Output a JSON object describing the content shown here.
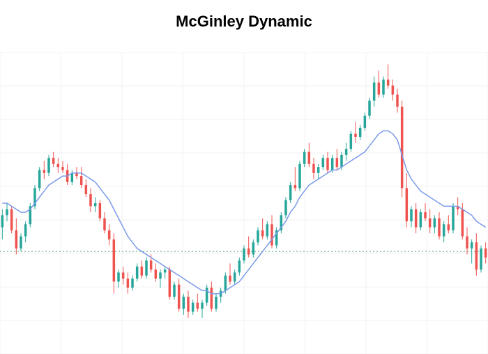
{
  "title": "McGinley Dynamic",
  "title_fontsize": 22,
  "title_color": "#000000",
  "chart": {
    "type": "candlestick",
    "background_color": "#ffffff",
    "grid_color": "#f0f0f0",
    "grid_lines_h": 9,
    "grid_lines_v": 8,
    "reference_line_y": 34,
    "reference_line_color": "#4aa86f",
    "reference_line_dash": "2,3",
    "up_color": "#26a69a",
    "down_color": "#ef5350",
    "wick_width": 1,
    "body_width": 3.5,
    "indicator_color": "#7a9ae8",
    "indicator_width": 1.5,
    "ylim": [
      0,
      100
    ],
    "candles": [
      {
        "o": 42,
        "h": 48,
        "l": 38,
        "c": 46
      },
      {
        "o": 46,
        "h": 50,
        "l": 44,
        "c": 48
      },
      {
        "o": 48,
        "h": 49,
        "l": 40,
        "c": 41
      },
      {
        "o": 41,
        "h": 45,
        "l": 33,
        "c": 35
      },
      {
        "o": 35,
        "h": 40,
        "l": 34,
        "c": 39
      },
      {
        "o": 39,
        "h": 44,
        "l": 37,
        "c": 43
      },
      {
        "o": 43,
        "h": 50,
        "l": 42,
        "c": 49
      },
      {
        "o": 49,
        "h": 56,
        "l": 48,
        "c": 55
      },
      {
        "o": 55,
        "h": 62,
        "l": 54,
        "c": 61
      },
      {
        "o": 61,
        "h": 64,
        "l": 58,
        "c": 60
      },
      {
        "o": 60,
        "h": 66,
        "l": 59,
        "c": 65
      },
      {
        "o": 65,
        "h": 67,
        "l": 62,
        "c": 63
      },
      {
        "o": 63,
        "h": 65,
        "l": 60,
        "c": 62
      },
      {
        "o": 62,
        "h": 64,
        "l": 60,
        "c": 61
      },
      {
        "o": 61,
        "h": 63,
        "l": 56,
        "c": 57
      },
      {
        "o": 57,
        "h": 61,
        "l": 56,
        "c": 60
      },
      {
        "o": 60,
        "h": 62,
        "l": 58,
        "c": 59
      },
      {
        "o": 59,
        "h": 62,
        "l": 55,
        "c": 56
      },
      {
        "o": 56,
        "h": 58,
        "l": 52,
        "c": 53
      },
      {
        "o": 53,
        "h": 55,
        "l": 47,
        "c": 49
      },
      {
        "o": 49,
        "h": 52,
        "l": 47,
        "c": 50
      },
      {
        "o": 50,
        "h": 51,
        "l": 44,
        "c": 45
      },
      {
        "o": 45,
        "h": 47,
        "l": 40,
        "c": 41
      },
      {
        "o": 41,
        "h": 43,
        "l": 36,
        "c": 38
      },
      {
        "o": 38,
        "h": 40,
        "l": 20,
        "c": 24
      },
      {
        "o": 24,
        "h": 28,
        "l": 22,
        "c": 27
      },
      {
        "o": 27,
        "h": 29,
        "l": 23,
        "c": 25
      },
      {
        "o": 25,
        "h": 27,
        "l": 20,
        "c": 22
      },
      {
        "o": 22,
        "h": 26,
        "l": 21,
        "c": 25
      },
      {
        "o": 25,
        "h": 30,
        "l": 24,
        "c": 29
      },
      {
        "o": 29,
        "h": 31,
        "l": 25,
        "c": 26
      },
      {
        "o": 26,
        "h": 32,
        "l": 25,
        "c": 31
      },
      {
        "o": 31,
        "h": 33,
        "l": 27,
        "c": 28
      },
      {
        "o": 28,
        "h": 30,
        "l": 24,
        "c": 25
      },
      {
        "o": 25,
        "h": 28,
        "l": 22,
        "c": 27
      },
      {
        "o": 27,
        "h": 29,
        "l": 25,
        "c": 28
      },
      {
        "o": 28,
        "h": 29,
        "l": 18,
        "c": 19
      },
      {
        "o": 19,
        "h": 24,
        "l": 18,
        "c": 23
      },
      {
        "o": 23,
        "h": 25,
        "l": 14,
        "c": 15
      },
      {
        "o": 15,
        "h": 20,
        "l": 13,
        "c": 19
      },
      {
        "o": 19,
        "h": 21,
        "l": 12,
        "c": 14
      },
      {
        "o": 14,
        "h": 18,
        "l": 13,
        "c": 17
      },
      {
        "o": 17,
        "h": 20,
        "l": 14,
        "c": 15
      },
      {
        "o": 15,
        "h": 18,
        "l": 12,
        "c": 17
      },
      {
        "o": 17,
        "h": 23,
        "l": 16,
        "c": 22
      },
      {
        "o": 22,
        "h": 24,
        "l": 14,
        "c": 15
      },
      {
        "o": 15,
        "h": 20,
        "l": 14,
        "c": 19
      },
      {
        "o": 19,
        "h": 22,
        "l": 17,
        "c": 21
      },
      {
        "o": 21,
        "h": 27,
        "l": 20,
        "c": 26
      },
      {
        "o": 26,
        "h": 30,
        "l": 23,
        "c": 24
      },
      {
        "o": 24,
        "h": 28,
        "l": 23,
        "c": 27
      },
      {
        "o": 27,
        "h": 32,
        "l": 26,
        "c": 31
      },
      {
        "o": 31,
        "h": 36,
        "l": 30,
        "c": 35
      },
      {
        "o": 35,
        "h": 39,
        "l": 32,
        "c": 33
      },
      {
        "o": 33,
        "h": 38,
        "l": 32,
        "c": 37
      },
      {
        "o": 37,
        "h": 42,
        "l": 36,
        "c": 41
      },
      {
        "o": 41,
        "h": 45,
        "l": 38,
        "c": 39
      },
      {
        "o": 39,
        "h": 44,
        "l": 38,
        "c": 43
      },
      {
        "o": 43,
        "h": 46,
        "l": 35,
        "c": 36
      },
      {
        "o": 36,
        "h": 42,
        "l": 35,
        "c": 41
      },
      {
        "o": 41,
        "h": 47,
        "l": 40,
        "c": 46
      },
      {
        "o": 46,
        "h": 52,
        "l": 45,
        "c": 51
      },
      {
        "o": 51,
        "h": 57,
        "l": 50,
        "c": 56
      },
      {
        "o": 56,
        "h": 62,
        "l": 54,
        "c": 55
      },
      {
        "o": 55,
        "h": 64,
        "l": 54,
        "c": 63
      },
      {
        "o": 63,
        "h": 68,
        "l": 62,
        "c": 67
      },
      {
        "o": 67,
        "h": 70,
        "l": 62,
        "c": 63
      },
      {
        "o": 63,
        "h": 65,
        "l": 58,
        "c": 60
      },
      {
        "o": 60,
        "h": 63,
        "l": 58,
        "c": 62
      },
      {
        "o": 62,
        "h": 66,
        "l": 61,
        "c": 65
      },
      {
        "o": 65,
        "h": 67,
        "l": 60,
        "c": 61
      },
      {
        "o": 61,
        "h": 66,
        "l": 60,
        "c": 65
      },
      {
        "o": 65,
        "h": 68,
        "l": 61,
        "c": 62
      },
      {
        "o": 62,
        "h": 67,
        "l": 61,
        "c": 66
      },
      {
        "o": 66,
        "h": 70,
        "l": 64,
        "c": 68
      },
      {
        "o": 68,
        "h": 74,
        "l": 67,
        "c": 73
      },
      {
        "o": 73,
        "h": 77,
        "l": 70,
        "c": 72
      },
      {
        "o": 72,
        "h": 76,
        "l": 71,
        "c": 75
      },
      {
        "o": 75,
        "h": 80,
        "l": 74,
        "c": 79
      },
      {
        "o": 79,
        "h": 85,
        "l": 78,
        "c": 84
      },
      {
        "o": 84,
        "h": 92,
        "l": 82,
        "c": 90
      },
      {
        "o": 90,
        "h": 94,
        "l": 85,
        "c": 86
      },
      {
        "o": 86,
        "h": 92,
        "l": 85,
        "c": 91
      },
      {
        "o": 91,
        "h": 96,
        "l": 88,
        "c": 89
      },
      {
        "o": 89,
        "h": 91,
        "l": 84,
        "c": 86
      },
      {
        "o": 86,
        "h": 88,
        "l": 80,
        "c": 82
      },
      {
        "o": 82,
        "h": 84,
        "l": 52,
        "c": 55
      },
      {
        "o": 55,
        "h": 60,
        "l": 42,
        "c": 44
      },
      {
        "o": 44,
        "h": 49,
        "l": 42,
        "c": 48
      },
      {
        "o": 48,
        "h": 50,
        "l": 40,
        "c": 42
      },
      {
        "o": 42,
        "h": 48,
        "l": 41,
        "c": 47
      },
      {
        "o": 47,
        "h": 50,
        "l": 44,
        "c": 45
      },
      {
        "o": 45,
        "h": 48,
        "l": 40,
        "c": 42
      },
      {
        "o": 42,
        "h": 46,
        "l": 40,
        "c": 45
      },
      {
        "o": 45,
        "h": 47,
        "l": 38,
        "c": 39
      },
      {
        "o": 39,
        "h": 44,
        "l": 37,
        "c": 43
      },
      {
        "o": 43,
        "h": 46,
        "l": 40,
        "c": 41
      },
      {
        "o": 41,
        "h": 50,
        "l": 40,
        "c": 49
      },
      {
        "o": 49,
        "h": 52,
        "l": 46,
        "c": 48
      },
      {
        "o": 48,
        "h": 50,
        "l": 38,
        "c": 39
      },
      {
        "o": 39,
        "h": 42,
        "l": 33,
        "c": 35
      },
      {
        "o": 35,
        "h": 38,
        "l": 30,
        "c": 37
      },
      {
        "o": 37,
        "h": 40,
        "l": 26,
        "c": 28
      },
      {
        "o": 28,
        "h": 36,
        "l": 27,
        "c": 35
      },
      {
        "o": 35,
        "h": 37,
        "l": 30,
        "c": 32
      }
    ],
    "indicator": [
      50,
      50,
      49,
      48,
      47,
      47,
      48,
      50,
      52,
      54,
      56,
      57,
      58,
      59,
      59,
      60,
      60,
      60,
      59,
      58,
      57,
      55,
      53,
      51,
      48,
      45,
      42,
      39,
      37,
      35,
      34,
      33,
      32,
      31,
      30,
      29,
      28,
      27,
      26,
      25,
      24,
      23,
      22,
      21,
      21,
      20,
      20,
      20,
      21,
      22,
      23,
      24,
      26,
      28,
      30,
      32,
      34,
      36,
      38,
      40,
      42,
      44,
      47,
      49,
      52,
      54,
      56,
      57,
      58,
      59,
      60,
      61,
      61,
      62,
      63,
      64,
      65,
      66,
      67,
      69,
      71,
      73,
      74,
      74,
      73,
      71,
      66,
      61,
      58,
      56,
      54,
      53,
      52,
      51,
      50,
      49,
      49,
      49,
      49,
      48,
      47,
      46,
      44,
      43,
      42
    ]
  }
}
